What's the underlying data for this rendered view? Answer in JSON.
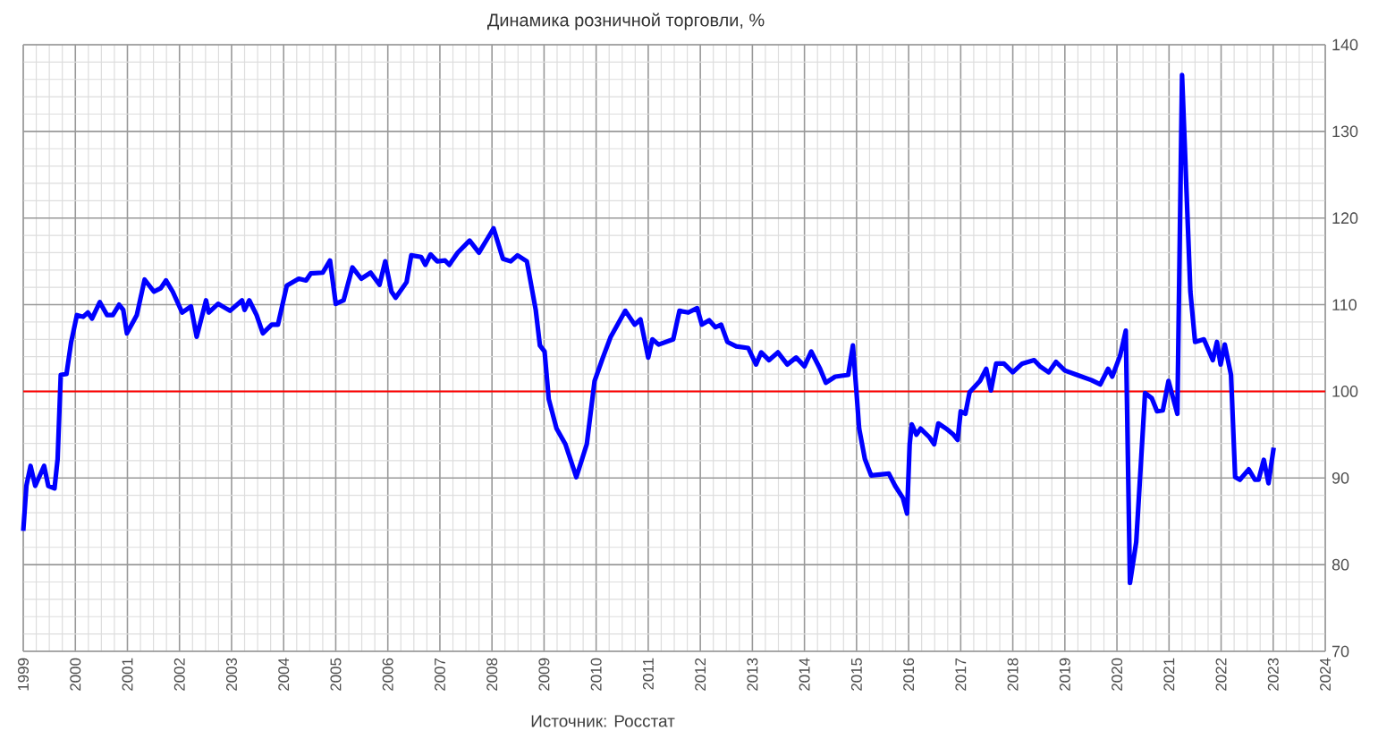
{
  "chart_data": {
    "type": "line",
    "title": "Динамика розничной торговли, %",
    "annotations": [
      "Источник: Росстат"
    ],
    "xlim": [
      1999,
      2024
    ],
    "xticks": [
      1999,
      2000,
      2001,
      2002,
      2003,
      2004,
      2005,
      2006,
      2007,
      2008,
      2009,
      2010,
      2011,
      2012,
      2013,
      2014,
      2015,
      2016,
      2017,
      2018,
      2019,
      2020,
      2021,
      2022,
      2023,
      2024
    ],
    "ylim": [
      70,
      140
    ],
    "yticks": [
      70,
      80,
      90,
      100,
      110,
      120,
      130,
      140
    ],
    "grid": true,
    "marker": "none",
    "line_style": "solid",
    "ref_lines": [
      {
        "axis": "y",
        "value": 100,
        "color": "#ff0000"
      }
    ],
    "series": [
      {
        "color": "#0000ff",
        "x": [
          1999.0,
          1999.06,
          1999.14,
          1999.23,
          1999.4,
          1999.48,
          1999.6,
          1999.66,
          1999.72,
          1999.83,
          1999.92,
          2000.03,
          2000.15,
          2000.24,
          2000.32,
          2000.47,
          2000.61,
          2000.72,
          2000.84,
          2000.92,
          2000.99,
          2001.18,
          2001.33,
          2001.51,
          2001.64,
          2001.74,
          2001.87,
          2002.05,
          2002.22,
          2002.33,
          2002.51,
          2002.56,
          2002.74,
          2002.97,
          2003.2,
          2003.25,
          2003.34,
          2003.48,
          2003.6,
          2003.77,
          2003.89,
          2004.06,
          2004.29,
          2004.43,
          2004.52,
          2004.75,
          2004.89,
          2005.0,
          2005.15,
          2005.32,
          2005.49,
          2005.67,
          2005.84,
          2005.95,
          2006.07,
          2006.15,
          2006.36,
          2006.45,
          2006.64,
          2006.72,
          2006.82,
          2006.95,
          2007.1,
          2007.18,
          2007.34,
          2007.57,
          2007.75,
          2007.92,
          2008.03,
          2008.21,
          2008.36,
          2008.49,
          2008.67,
          2008.84,
          2008.92,
          2009.01,
          2009.09,
          2009.24,
          2009.41,
          2009.62,
          2009.82,
          2009.97,
          2010.13,
          2010.28,
          2010.56,
          2010.74,
          2010.85,
          2011.0,
          2011.08,
          2011.2,
          2011.48,
          2011.6,
          2011.77,
          2011.94,
          2012.03,
          2012.17,
          2012.29,
          2012.4,
          2012.52,
          2012.69,
          2012.92,
          2013.07,
          2013.17,
          2013.32,
          2013.49,
          2013.67,
          2013.84,
          2014.0,
          2014.13,
          2014.3,
          2014.41,
          2014.59,
          2014.84,
          2014.93,
          2015.0,
          2015.05,
          2015.16,
          2015.28,
          2015.62,
          2015.74,
          2015.89,
          2015.97,
          2016.02,
          2016.06,
          2016.15,
          2016.23,
          2016.4,
          2016.49,
          2016.57,
          2016.72,
          2016.86,
          2016.94,
          2017.0,
          2017.09,
          2017.17,
          2017.37,
          2017.49,
          2017.58,
          2017.68,
          2017.83,
          2018.0,
          2018.18,
          2018.41,
          2018.52,
          2018.69,
          2018.83,
          2019.0,
          2019.23,
          2019.51,
          2019.68,
          2019.83,
          2019.91,
          2020.06,
          2020.17,
          2020.25,
          2020.37,
          2020.54,
          2020.67,
          2020.77,
          2020.88,
          2020.99,
          2021.16,
          2021.25,
          2021.41,
          2021.5,
          2021.67,
          2021.84,
          2021.92,
          2021.99,
          2022.07,
          2022.19,
          2022.27,
          2022.36,
          2022.53,
          2022.65,
          2022.72,
          2022.82,
          2022.91,
          2023.01
        ],
        "values": [
          83.9,
          89.1,
          91.4,
          89.1,
          91.4,
          89.1,
          88.8,
          92.2,
          101.9,
          102,
          105.7,
          108.8,
          108.6,
          109.1,
          108.4,
          110.3,
          108.8,
          108.8,
          110,
          109.4,
          106.7,
          108.8,
          112.9,
          111.5,
          111.9,
          112.8,
          111.5,
          109.1,
          109.8,
          106.3,
          110.5,
          109.1,
          110.1,
          109.3,
          110.5,
          109.4,
          110.5,
          108.8,
          106.7,
          107.7,
          107.7,
          112.2,
          113,
          112.8,
          113.6,
          113.7,
          115.1,
          110.1,
          110.5,
          114.3,
          113,
          113.7,
          112.3,
          115,
          111.5,
          110.8,
          112.6,
          115.7,
          115.5,
          114.6,
          115.8,
          115,
          115.1,
          114.6,
          116,
          117.4,
          116,
          117.7,
          118.8,
          115.3,
          115,
          115.7,
          115,
          109.4,
          105.3,
          104.6,
          99.1,
          95.7,
          93.9,
          90.1,
          93.9,
          101.2,
          103.9,
          106.3,
          109.3,
          107.7,
          108.3,
          103.9,
          106,
          105.4,
          106,
          109.3,
          109.1,
          109.6,
          107.7,
          108.2,
          107.4,
          107.7,
          105.7,
          105.2,
          105,
          103.1,
          104.5,
          103.6,
          104.5,
          103.1,
          103.9,
          102.9,
          104.6,
          102.6,
          101,
          101.7,
          101.9,
          105.3,
          99.8,
          95.7,
          92.2,
          90.3,
          90.5,
          89.1,
          87.7,
          85.9,
          93.9,
          96.2,
          95,
          95.7,
          94.7,
          93.9,
          96.3,
          95.7,
          95,
          94.4,
          97.7,
          97.4,
          99.9,
          101.2,
          102.6,
          100.1,
          103.2,
          103.2,
          102.2,
          103.2,
          103.6,
          102.9,
          102.2,
          103.4,
          102.4,
          101.9,
          101.3,
          100.8,
          102.6,
          101.7,
          104.1,
          107,
          77.9,
          82.6,
          99.8,
          99.2,
          97.7,
          97.8,
          101.2,
          97.4,
          136.5,
          111.5,
          105.7,
          106,
          103.6,
          105.7,
          103.1,
          105.4,
          101.9,
          90.1,
          89.8,
          91,
          89.8,
          89.8,
          92.1,
          89.4,
          93.5
        ]
      }
    ]
  }
}
